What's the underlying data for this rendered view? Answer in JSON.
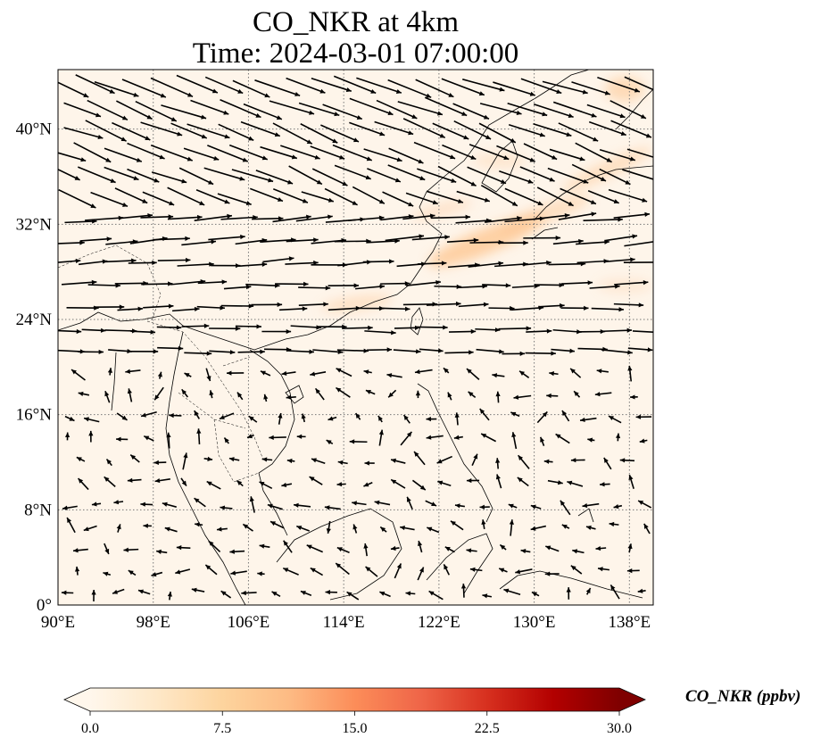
{
  "header": {
    "title": "CO_NKR at 4km",
    "subtitle": "Time: 2024-03-01 07:00:00"
  },
  "map": {
    "lon_range": [
      90,
      140
    ],
    "lat_range": [
      0,
      45
    ],
    "lon_ticks": [
      "90°E",
      "98°E",
      "106°E",
      "114°E",
      "122°E",
      "130°E",
      "138°E"
    ],
    "lat_ticks": [
      "0°",
      "8°N",
      "16°N",
      "24°N",
      "32°N",
      "40°N"
    ],
    "gridlines": "dotted",
    "background_color": "#fef5ea",
    "plume_color": "#fdc48e",
    "vector_color": "#000000",
    "coastline_color": "#000000"
  },
  "colorbar": {
    "label": "CO_NKR (ppbv)",
    "range": [
      0,
      30
    ],
    "ticks": [
      "0.0",
      "7.5",
      "15.0",
      "22.5",
      "30.0"
    ],
    "colormap": "OrRd",
    "colors": [
      "#fff7ec",
      "#fee8c8",
      "#fdd49e",
      "#fdbb84",
      "#fc8d59",
      "#ef6548",
      "#d7301f",
      "#b30000",
      "#7f0000"
    ],
    "extend": "both"
  }
}
